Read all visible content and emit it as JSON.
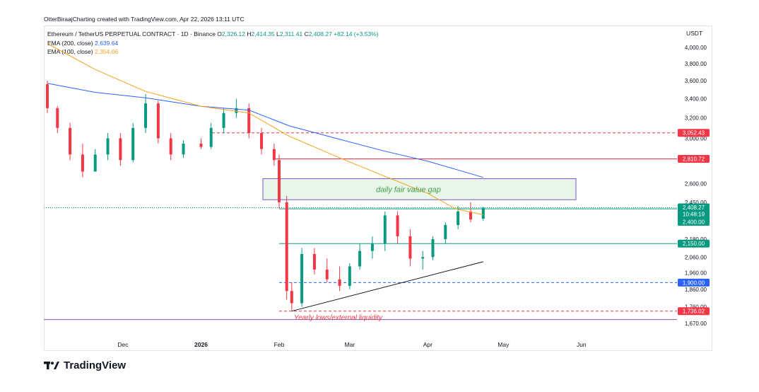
{
  "header": {
    "credit": "OtterBiraajCharting created with TradingView.com, Apr 22, 2026 13:11 UTC"
  },
  "legend": {
    "symbol": "Ethereum / TetherUS PERPETUAL CONTRACT · 1D · Binance",
    "o_label": "O",
    "o_value": "2,326.12",
    "h_label": "H",
    "h_value": "2,414.35",
    "l_label": "L",
    "l_value": "2,311.41",
    "c_label": "C",
    "c_value": "2,408.27",
    "change": "+82.14 (+3.53%)",
    "ema200_label": "EMA (200, close)",
    "ema200_value": "2,639.64",
    "ema100_label": "EMA (100, close)",
    "ema100_value": "2,354.06"
  },
  "axis": {
    "currency": "USDT"
  },
  "logo": {
    "text": "TradingView"
  },
  "colors": {
    "up": "#089981",
    "down": "#f23645",
    "ema200": "#2962ff",
    "ema100": "#f7a21b"
  },
  "chart_data": {
    "type": "candlestick",
    "symbol": "ETHUSDT.P",
    "interval": "1D",
    "y_axis_ticks": [
      "4,000.00",
      "3,800.00",
      "3,600.00",
      "3,400.00",
      "3,200.00",
      "3,000.00",
      "2,600.00",
      "2,450.00",
      "2,180.00",
      "2,060.00",
      "1,960.00",
      "1,860.00",
      "1,760.00",
      "1,670.00"
    ],
    "x_axis_ticks": [
      "Dec",
      "2026",
      "Feb",
      "Mar",
      "Apr",
      "May",
      "Jun"
    ],
    "price_tags": [
      {
        "label": "3,052.43",
        "value": 3052.43,
        "color": "#f23645"
      },
      {
        "label": "2,810.72",
        "value": 2810.72,
        "color": "#f23645"
      },
      {
        "label": "2,408.27",
        "sub": "10:48:19",
        "value": 2408.27,
        "color": "#089981"
      },
      {
        "label": "2,400.00",
        "value": 2400,
        "color": "#089981"
      },
      {
        "label": "2,150.00",
        "value": 2150,
        "color": "#089981"
      },
      {
        "label": "1,900.00",
        "value": 1900,
        "color": "#2962ff"
      },
      {
        "label": "1,736.02",
        "value": 1736.02,
        "color": "#f23645"
      }
    ],
    "horizontal_levels": [
      {
        "value": 3052.43,
        "style": "dashed",
        "color": "#f23645"
      },
      {
        "value": 2810.72,
        "style": "solid",
        "color": "#f23645"
      },
      {
        "value": 2408.27,
        "style": "dotted",
        "color": "#089981"
      },
      {
        "value": 2400,
        "style": "solid",
        "color": "#089981"
      },
      {
        "value": 2150,
        "style": "solid",
        "color": "#089981"
      },
      {
        "value": 1900,
        "style": "dashed",
        "color": "#2962ff"
      },
      {
        "value": 1736.02,
        "style": "dashed",
        "color": "#f23645"
      },
      {
        "value": 1690,
        "style": "solid",
        "color": "#7e57c2"
      }
    ],
    "annotations": [
      {
        "text": "daily fair value gap",
        "type": "zone",
        "y_top": 2640,
        "y_bottom": 2470,
        "color": "#43a047"
      },
      {
        "text": "Yearly lows/external liquidity",
        "type": "label",
        "color": "#f23645"
      }
    ],
    "trendline": {
      "from": {
        "date": "2026-02-06",
        "value": 1736
      },
      "to": {
        "date": "2026-04-23",
        "value": 2030
      }
    },
    "ema200": [
      [
        "2025-11-01",
        3570
      ],
      [
        "2025-11-20",
        3470
      ],
      [
        "2025-12-10",
        3410
      ],
      [
        "2026-01-01",
        3320
      ],
      [
        "2026-01-20",
        3280
      ],
      [
        "2026-02-05",
        3120
      ],
      [
        "2026-02-25",
        2990
      ],
      [
        "2026-03-15",
        2880
      ],
      [
        "2026-04-01",
        2790
      ],
      [
        "2026-04-12",
        2720
      ],
      [
        "2026-04-23",
        2650
      ]
    ],
    "ema100": [
      [
        "2025-11-01",
        4050
      ],
      [
        "2025-11-20",
        3730
      ],
      [
        "2025-12-10",
        3480
      ],
      [
        "2026-01-01",
        3320
      ],
      [
        "2026-01-20",
        3250
      ],
      [
        "2026-02-05",
        3020
      ],
      [
        "2026-02-25",
        2820
      ],
      [
        "2026-03-15",
        2660
      ],
      [
        "2026-04-01",
        2520
      ],
      [
        "2026-04-12",
        2400
      ],
      [
        "2026-04-23",
        2355
      ]
    ],
    "ohlc_approx": [
      [
        "2025-11-01",
        3560,
        3600,
        3250,
        3300
      ],
      [
        "2025-11-05",
        3300,
        3320,
        3050,
        3100
      ],
      [
        "2025-11-10",
        3100,
        3150,
        2800,
        2850
      ],
      [
        "2025-11-15",
        2850,
        2950,
        2650,
        2700
      ],
      [
        "2025-11-20",
        2700,
        2900,
        2750,
        2850
      ],
      [
        "2025-11-25",
        2850,
        3050,
        2800,
        3000
      ],
      [
        "2025-11-30",
        3000,
        3050,
        2750,
        2800
      ],
      [
        "2025-12-05",
        2800,
        3150,
        2780,
        3100
      ],
      [
        "2025-12-10",
        3100,
        3450,
        3050,
        3350
      ],
      [
        "2025-12-15",
        3350,
        3380,
        2950,
        3000
      ],
      [
        "2025-12-20",
        3000,
        3050,
        2800,
        2850
      ],
      [
        "2025-12-25",
        2850,
        2980,
        2820,
        2950
      ],
      [
        "2026-01-01",
        2950,
        3000,
        2900,
        2920
      ],
      [
        "2026-01-05",
        2920,
        3150,
        2900,
        3100
      ],
      [
        "2026-01-10",
        3100,
        3300,
        3050,
        3250
      ],
      [
        "2026-01-15",
        3250,
        3400,
        3200,
        3300
      ],
      [
        "2026-01-20",
        3300,
        3350,
        3000,
        3050
      ],
      [
        "2026-01-25",
        3050,
        3100,
        2850,
        2900
      ],
      [
        "2026-01-30",
        2900,
        2950,
        2750,
        2800
      ],
      [
        "2026-02-01",
        2800,
        2850,
        2400,
        2450
      ],
      [
        "2026-02-04",
        2450,
        2500,
        1800,
        1850
      ],
      [
        "2026-02-06",
        1850,
        1900,
        1740,
        1780
      ],
      [
        "2026-02-10",
        1780,
        2120,
        1760,
        2080
      ],
      [
        "2026-02-15",
        2080,
        2120,
        1950,
        1980
      ],
      [
        "2026-02-20",
        1980,
        2050,
        1900,
        1920
      ],
      [
        "2026-02-25",
        1920,
        2000,
        1850,
        1880
      ],
      [
        "2026-03-01",
        1880,
        2020,
        1860,
        2000
      ],
      [
        "2026-03-05",
        2000,
        2150,
        1980,
        2100
      ],
      [
        "2026-03-10",
        2100,
        2200,
        2050,
        2150
      ],
      [
        "2026-03-15",
        2150,
        2380,
        2100,
        2350
      ],
      [
        "2026-03-20",
        2350,
        2380,
        2150,
        2200
      ],
      [
        "2026-03-25",
        2200,
        2250,
        2000,
        2050
      ],
      [
        "2026-03-30",
        2050,
        2100,
        1980,
        2060
      ],
      [
        "2026-04-03",
        2060,
        2200,
        2040,
        2180
      ],
      [
        "2026-04-08",
        2180,
        2300,
        2150,
        2280
      ],
      [
        "2026-04-13",
        2280,
        2420,
        2250,
        2380
      ],
      [
        "2026-04-18",
        2380,
        2450,
        2300,
        2320
      ],
      [
        "2026-04-23",
        2326.12,
        2414.35,
        2311.41,
        2408.27
      ]
    ]
  }
}
